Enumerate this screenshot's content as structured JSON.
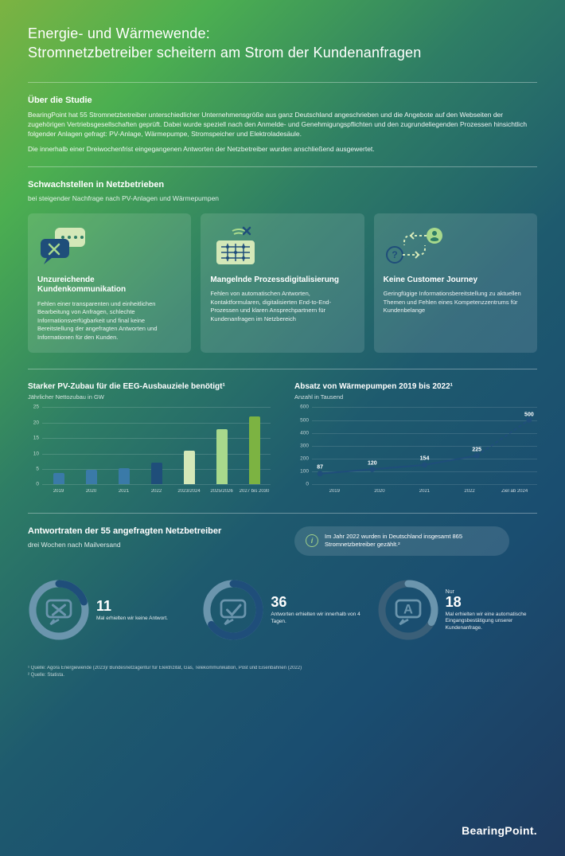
{
  "colors": {
    "darkBlue": "#1f4e7a",
    "midBlue": "#3a7aa8",
    "lightGreen": "#a8d98c",
    "green": "#7cb342",
    "white": "#ffffff",
    "gridLine": "rgba(255,255,255,0.15)"
  },
  "title_line1": "Energie- und Wärmewende:",
  "title_line2": "Stromnetzbetreiber scheitern am Strom der Kundenanfragen",
  "about": {
    "heading": "Über die Studie",
    "body": "BearingPoint hat 55 Stromnetzbetreiber unterschiedlicher Unternehmensgröße aus ganz Deutschland angeschrieben und die Angebote auf den Webseiten der zugehörigen Vertriebsgesellschaften geprüft. Dabei wurde speziell nach den Anmelde- und Genehmigungspflichten und den zugrundeliegenden Prozessen hinsichtlich folgender Anlagen gefragt: PV-Anlage, Wärmepumpe, Stromspeicher und Elektroladesäule.",
    "body2": "Die innerhalb einer Dreiwochenfrist eingegangenen Antworten der Netzbetreiber wurden anschließend ausgewertet."
  },
  "weaknesses": {
    "heading": "Schwachstellen in Netzbetrieben",
    "sub": "bei steigender Nachfrage nach PV-Anlagen und Wärmepumpen",
    "cards": [
      {
        "title": "Unzureichende Kundenkommunikation",
        "text": "Fehlen einer transparenten und einheitlichen Bearbeitung von Anfragen, schlechte Informationsverfügbarkeit und final keine Bereitstellung der angefragten Antworten und Informationen für den Kunden."
      },
      {
        "title": "Mangelnde Prozessdigitalisierung",
        "text": "Fehlen von automatischen Antworten, Kontaktformularen, digitalisierten End-to-End-Prozessen und klaren Ansprechpartnern für Kundenanfragen im Netzbereich"
      },
      {
        "title": "Keine Customer Journey",
        "text": "Geringfügige Informationsbereitstellung zu aktuellen Themen und Fehlen eines Kompetenzzentrums für Kundenbelange"
      }
    ]
  },
  "barChart": {
    "type": "bar",
    "title": "Starker PV-Zubau für die EEG-Ausbauziele benötigt¹",
    "sub": "Jährlicher Nettozubau in GW",
    "ylim": [
      0,
      25
    ],
    "yticks": [
      0,
      5,
      10,
      15,
      20,
      25
    ],
    "categories": [
      "2019",
      "2020",
      "2021",
      "2022",
      "2023/2024",
      "2025/2026",
      "2027 bis 2030"
    ],
    "values": [
      3.8,
      4.8,
      5.2,
      7.0,
      11.0,
      18.0,
      22.0
    ],
    "colors": [
      "#3a7aa8",
      "#3a7aa8",
      "#3a7aa8",
      "#1f4e7a",
      "#d4e8b8",
      "#a8d98c",
      "#7cb342"
    ]
  },
  "lineChart": {
    "type": "line",
    "title": "Absatz von Wärmepumpen 2019 bis 2022¹",
    "sub": "Anzahl in Tausend",
    "ylim": [
      0,
      600
    ],
    "yticks": [
      0,
      100,
      200,
      300,
      400,
      500,
      600
    ],
    "categories": [
      "2019",
      "2020",
      "2021",
      "2022",
      "Ziel ab 2024"
    ],
    "values": [
      87,
      120,
      154,
      225,
      500
    ],
    "showLabels": [
      87,
      120,
      154,
      225,
      500
    ],
    "line_color": "#1f4e7a",
    "dash_from_index": 3,
    "marker_color": "#1f4e7a"
  },
  "responses": {
    "heading": "Antwortraten der 55 angefragten Netzbetreiber",
    "sub": "drei Wochen nach Mailversand",
    "info": "Im Jahr 2022 wurden in Deutschland insgesamt 865 Stromnetzbetreiber gezählt.²",
    "total": 55,
    "donuts": [
      {
        "value": 11,
        "big": "11",
        "text": "Mal erhielten wir keine Antwort.",
        "ring_color": "#1f4e7a",
        "track_color": "#6b95ad"
      },
      {
        "value": 36,
        "big": "36",
        "text": "Antworten erhielten wir innerhalb von 4 Tagen.",
        "ring_color": "#1f4e7a",
        "track_color": "#6b95ad"
      },
      {
        "value": 18,
        "big_prefix": "Nur",
        "big": "18",
        "text": "Mal erhielten wir eine automatische Eingangs­bestätigung unserer Kundenanfrage.",
        "ring_color": "#6b95ad",
        "track_color": "#3a5f78"
      }
    ]
  },
  "footnotes": {
    "l1": "¹ Quelle: Agora Energiewende (2023)/ Bundesnetzagentur für Elektrizität, Gas, Telekommunikation, Post und Eisenbahnen (2022)",
    "l2": "² Quelle: Statista."
  },
  "logo": "BearingPoint."
}
